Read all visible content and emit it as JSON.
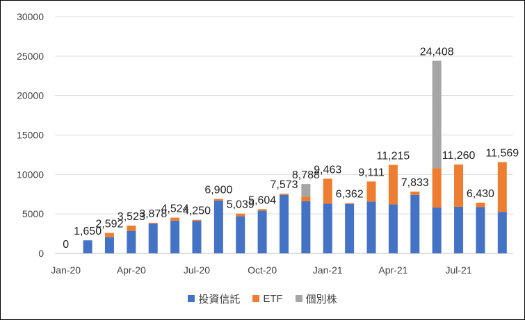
{
  "chart_data": {
    "type": "bar",
    "stacked": true,
    "categories": [
      "Jan-20",
      "Feb-20",
      "Mar-20",
      "Apr-20",
      "May-20",
      "Jun-20",
      "Jul-20",
      "Aug-20",
      "Sep-20",
      "Oct-20",
      "Nov-20",
      "Dec-20",
      "Jan-21",
      "Feb-21",
      "Mar-21",
      "Apr-21",
      "May-21",
      "Jun-21",
      "Jul-21",
      "Aug-21",
      "Sep-21"
    ],
    "x_tick_labels": [
      {
        "index": 0,
        "label": "Jan-20"
      },
      {
        "index": 3,
        "label": "Apr-20"
      },
      {
        "index": 6,
        "label": "Jul-20"
      },
      {
        "index": 9,
        "label": "Oct-20"
      },
      {
        "index": 12,
        "label": "Jan-21"
      },
      {
        "index": 15,
        "label": "Apr-21"
      },
      {
        "index": 18,
        "label": "Jul-21"
      }
    ],
    "y_ticks": [
      "0",
      "5000",
      "10000",
      "15000",
      "20000",
      "25000",
      "30000"
    ],
    "ylim": [
      0,
      30000
    ],
    "grid": true,
    "legend_position": "bottom",
    "series": [
      {
        "name": "投資信託",
        "color": "#4472C4",
        "values": [
          0,
          1650,
          2050,
          2850,
          3750,
          4150,
          4100,
          6700,
          4700,
          5400,
          7400,
          6600,
          6300,
          6250,
          6550,
          6200,
          7400,
          5800,
          5900,
          5850,
          5250
        ]
      },
      {
        "name": "ETF",
        "color": "#ED7D31",
        "values": [
          0,
          0,
          542,
          673,
          128,
          374,
          150,
          200,
          339,
          204,
          173,
          600,
          3163,
          112,
          2561,
          5015,
          433,
          5008,
          5360,
          580,
          6319
        ]
      },
      {
        "name": "個別株",
        "color": "#A5A5A5",
        "values": [
          0,
          0,
          0,
          0,
          0,
          0,
          0,
          0,
          0,
          0,
          0,
          1588,
          0,
          0,
          0,
          0,
          0,
          13600,
          0,
          0,
          0
        ]
      }
    ],
    "totals": [
      0,
      1650,
      2592,
      3523,
      3878,
      4524,
      4250,
      6900,
      5039,
      5604,
      7573,
      8788,
      9463,
      6362,
      9111,
      11215,
      7833,
      24408,
      11260,
      6430,
      11569
    ],
    "data_labels": [
      "0",
      "1,650",
      "2,592",
      "3,523",
      "3,878",
      "4,524",
      "4,250",
      "6,900",
      "5,039",
      "5,604",
      "7,573",
      "8,788",
      "9,463",
      "6,362",
      "9,111",
      "11,215",
      "7,833",
      "24,408",
      "11,260",
      "6,430",
      "11,569"
    ]
  }
}
